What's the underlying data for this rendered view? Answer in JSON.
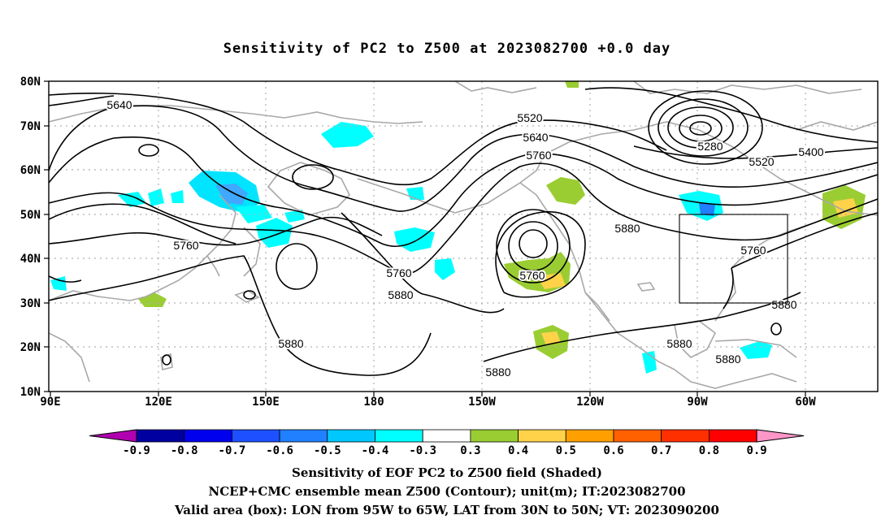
{
  "title": "Sensitivity of PC2 to Z500 at 2023082700 +0.0 day",
  "lat_labels": [
    "80N",
    "70N",
    "60N",
    "50N",
    "40N",
    "30N",
    "20N",
    "10N"
  ],
  "lon_labels": [
    "90E",
    "120E",
    "150E",
    "180",
    "150W",
    "120W",
    "90W",
    "60W"
  ],
  "colorbar": {
    "labels": [
      "-0.9",
      "-0.8",
      "-0.7",
      "-0.6",
      "-0.5",
      "-0.4",
      "-0.3",
      "0.3",
      "0.4",
      "0.5",
      "0.6",
      "0.7",
      "0.8",
      "0.9"
    ],
    "colors": [
      "#b000b0",
      "#0000a0",
      "#0000ee",
      "#1e50ff",
      "#2080ff",
      "#00c8ff",
      "#00ffff",
      "#ffffff",
      "#9acd32",
      "#ffd24a",
      "#ffa000",
      "#ff6000",
      "#ff3000",
      "#ff0000",
      "#ff96c8"
    ]
  },
  "contour_labels": [
    "5640",
    "5520",
    "5640",
    "5760",
    "5280",
    "5400",
    "5520",
    "5760",
    "5760",
    "5760",
    "5880",
    "5880",
    "5880",
    "5880",
    "5880",
    "5880",
    "5760",
    "5880"
  ],
  "captions": {
    "line1": "Sensitivity of EOF PC2 to Z500 field (Shaded)",
    "line2": "NCEP+CMC ensemble mean Z500 (Contour); unit(m); IT:2023082700",
    "line3": "Valid area (box): LON from 95W to 65W, LAT from 30N to 50N; VT: 2023090200"
  },
  "valid_box": {
    "lon": [
      -95,
      -65
    ],
    "lat": [
      30,
      50
    ]
  },
  "colors": {
    "coast": "#a8a8a8",
    "contour": "#000000",
    "grid": "#b0b0b0"
  }
}
